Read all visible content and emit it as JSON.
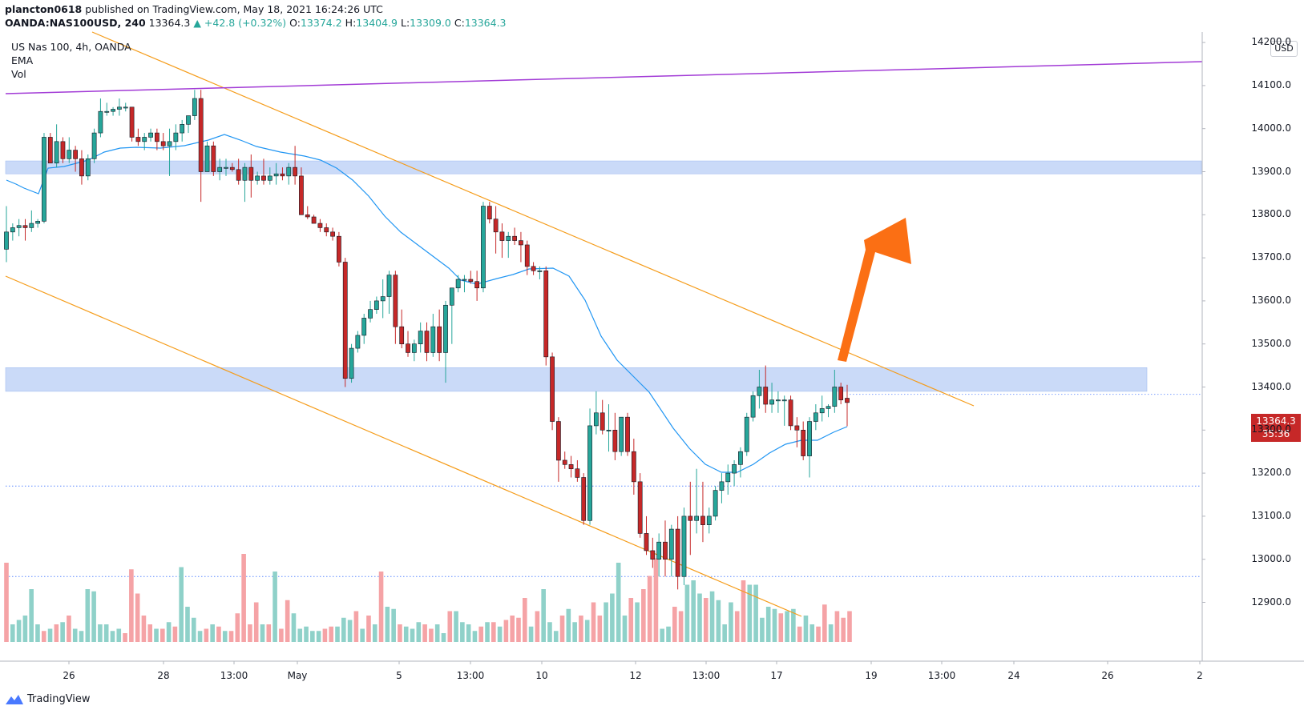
{
  "header": {
    "publisher": "plancton0618",
    "published_text": "published on TradingView.com, May 18, 2021 16:24:26 UTC",
    "symbol": "OANDA:NAS100USD, 240",
    "last": "13364.3",
    "change": "▲ +42.8 (+0.32%)",
    "o_label": "O:",
    "o": "13374.2",
    "h_label": "H:",
    "h": "13404.9",
    "l_label": "L:",
    "l": "13309.0",
    "c_label": "C:",
    "c": "13364.3"
  },
  "legend": {
    "title": "US Nas 100, 4h, OANDA",
    "ema": "EMA",
    "vol": "Vol"
  },
  "currency": "USD",
  "price_label": {
    "price": "13364.3",
    "countdown": "35:36"
  },
  "footer": {
    "brand": "TradingView"
  },
  "colors": {
    "up": "#26a69a",
    "down": "#c62828",
    "vol_up": "#8fd1c9",
    "vol_down": "#f5a3a6",
    "ema": "#2196f3",
    "channel": "#f59c1a",
    "resistance": "#a23bd6",
    "zone": "#c5d7f8",
    "arrow": "#fb6f14"
  },
  "chart_data": {
    "type": "candlestick",
    "timeframe": "4h",
    "y_axis": {
      "ticks": [
        12900,
        13000,
        13100,
        13200,
        13300,
        13400,
        13500,
        13600,
        13700,
        13800,
        13900,
        14000,
        14100,
        14200
      ]
    },
    "x_axis": {
      "ticks": [
        "26",
        "28",
        "13:00",
        "May",
        "5",
        "13:00",
        "10",
        "12",
        "13:00",
        "17",
        "19",
        "13:00",
        "24",
        "26",
        "2"
      ]
    },
    "candles": [
      [
        13720,
        13820,
        13690,
        13760
      ],
      [
        13760,
        13780,
        13740,
        13770
      ],
      [
        13770,
        13790,
        13750,
        13775
      ],
      [
        13775,
        13790,
        13740,
        13770
      ],
      [
        13770,
        13810,
        13760,
        13780
      ],
      [
        13780,
        13790,
        13770,
        13785
      ],
      [
        13785,
        13990,
        13780,
        13980
      ],
      [
        13980,
        13990,
        13920,
        13920
      ],
      [
        13920,
        14010,
        13910,
        13970
      ],
      [
        13970,
        13980,
        13920,
        13930
      ],
      [
        13930,
        13980,
        13920,
        13950
      ],
      [
        13950,
        13960,
        13900,
        13930
      ],
      [
        13930,
        13950,
        13870,
        13890
      ],
      [
        13890,
        13940,
        13880,
        13930
      ],
      [
        13930,
        14000,
        13920,
        13990
      ],
      [
        13990,
        14070,
        13980,
        14040
      ],
      [
        14040,
        14060,
        14030,
        14040
      ],
      [
        14040,
        14050,
        14030,
        14045
      ],
      [
        14045,
        14070,
        14030,
        14050
      ],
      [
        14050,
        14060,
        14040,
        14050
      ],
      [
        14050,
        14050,
        13970,
        13980
      ],
      [
        13980,
        14000,
        13960,
        13970
      ],
      [
        13970,
        13990,
        13950,
        13980
      ],
      [
        13980,
        14000,
        13970,
        13990
      ],
      [
        13990,
        14000,
        13950,
        13970
      ],
      [
        13970,
        13990,
        13950,
        13960
      ],
      [
        13960,
        14000,
        13890,
        13970
      ],
      [
        13970,
        14010,
        13950,
        13990
      ],
      [
        13990,
        14020,
        13970,
        14010
      ],
      [
        14010,
        14030,
        13990,
        14030
      ],
      [
        14030,
        14090,
        14020,
        14070
      ],
      [
        14070,
        14090,
        13830,
        13900
      ],
      [
        13900,
        13970,
        13900,
        13960
      ],
      [
        13960,
        13970,
        13890,
        13900
      ],
      [
        13900,
        13930,
        13880,
        13910
      ],
      [
        13910,
        13930,
        13890,
        13910
      ],
      [
        13910,
        13920,
        13900,
        13905
      ],
      [
        13905,
        13930,
        13870,
        13880
      ],
      [
        13880,
        13920,
        13830,
        13910
      ],
      [
        13910,
        13940,
        13840,
        13880
      ],
      [
        13880,
        13900,
        13870,
        13890
      ],
      [
        13890,
        13930,
        13870,
        13880
      ],
      [
        13880,
        13910,
        13870,
        13890
      ],
      [
        13890,
        13920,
        13870,
        13895
      ],
      [
        13895,
        13910,
        13880,
        13890
      ],
      [
        13890,
        13920,
        13870,
        13910
      ],
      [
        13910,
        13960,
        13870,
        13890
      ],
      [
        13890,
        13910,
        13800,
        13800
      ],
      [
        13800,
        13820,
        13790,
        13795
      ],
      [
        13795,
        13800,
        13780,
        13780
      ],
      [
        13780,
        13790,
        13760,
        13770
      ],
      [
        13770,
        13780,
        13750,
        13760
      ],
      [
        13760,
        13770,
        13740,
        13750
      ],
      [
        13750,
        13760,
        13680,
        13690
      ],
      [
        13690,
        13700,
        13400,
        13420
      ],
      [
        13420,
        13500,
        13410,
        13490
      ],
      [
        13490,
        13530,
        13480,
        13520
      ],
      [
        13520,
        13570,
        13500,
        13560
      ],
      [
        13560,
        13600,
        13550,
        13580
      ],
      [
        13580,
        13610,
        13570,
        13600
      ],
      [
        13600,
        13650,
        13560,
        13610
      ],
      [
        13610,
        13670,
        13570,
        13660
      ],
      [
        13660,
        13670,
        13500,
        13540
      ],
      [
        13540,
        13580,
        13490,
        13500
      ],
      [
        13500,
        13530,
        13470,
        13480
      ],
      [
        13480,
        13510,
        13460,
        13500
      ],
      [
        13500,
        13550,
        13480,
        13530
      ],
      [
        13530,
        13550,
        13460,
        13480
      ],
      [
        13480,
        13570,
        13470,
        13540
      ],
      [
        13540,
        13580,
        13460,
        13480
      ],
      [
        13480,
        13600,
        13410,
        13590
      ],
      [
        13590,
        13630,
        13500,
        13630
      ],
      [
        13630,
        13660,
        13620,
        13650
      ],
      [
        13650,
        13660,
        13620,
        13650
      ],
      [
        13650,
        13670,
        13640,
        13645
      ],
      [
        13645,
        13670,
        13600,
        13630
      ],
      [
        13630,
        13830,
        13620,
        13820
      ],
      [
        13820,
        13830,
        13780,
        13790
      ],
      [
        13790,
        13820,
        13710,
        13760
      ],
      [
        13760,
        13780,
        13700,
        13740
      ],
      [
        13740,
        13760,
        13700,
        13750
      ],
      [
        13750,
        13770,
        13730,
        13740
      ],
      [
        13740,
        13760,
        13690,
        13730
      ],
      [
        13730,
        13740,
        13660,
        13680
      ],
      [
        13680,
        13690,
        13660,
        13670
      ],
      [
        13670,
        13680,
        13650,
        13670
      ],
      [
        13670,
        13680,
        13450,
        13470
      ],
      [
        13470,
        13480,
        13300,
        13320
      ],
      [
        13320,
        13330,
        13180,
        13230
      ],
      [
        13230,
        13250,
        13210,
        13220
      ],
      [
        13220,
        13240,
        13190,
        13210
      ],
      [
        13210,
        13230,
        13180,
        13190
      ],
      [
        13190,
        13200,
        13080,
        13090
      ],
      [
        13090,
        13350,
        13080,
        13310
      ],
      [
        13310,
        13390,
        13290,
        13340
      ],
      [
        13340,
        13370,
        13290,
        13300
      ],
      [
        13300,
        13360,
        13250,
        13300
      ],
      [
        13300,
        13340,
        13230,
        13250
      ],
      [
        13250,
        13330,
        13240,
        13330
      ],
      [
        13330,
        13340,
        13240,
        13250
      ],
      [
        13250,
        13280,
        13150,
        13180
      ],
      [
        13180,
        13200,
        13050,
        13060
      ],
      [
        13060,
        13100,
        13010,
        13020
      ],
      [
        13020,
        13050,
        12980,
        13000
      ],
      [
        13000,
        13060,
        12960,
        13040
      ],
      [
        13040,
        13090,
        12960,
        13000
      ],
      [
        13000,
        13080,
        12960,
        13070
      ],
      [
        13070,
        13100,
        12930,
        12960
      ],
      [
        12960,
        13120,
        12940,
        13100
      ],
      [
        13100,
        13180,
        13010,
        13090
      ],
      [
        13090,
        13210,
        13060,
        13100
      ],
      [
        13100,
        13180,
        13040,
        13080
      ],
      [
        13080,
        13120,
        13060,
        13100
      ],
      [
        13100,
        13170,
        13090,
        13160
      ],
      [
        13160,
        13200,
        13130,
        13180
      ],
      [
        13180,
        13220,
        13150,
        13200
      ],
      [
        13200,
        13230,
        13170,
        13220
      ],
      [
        13220,
        13260,
        13190,
        13250
      ],
      [
        13250,
        13340,
        13240,
        13330
      ],
      [
        13330,
        13390,
        13320,
        13380
      ],
      [
        13380,
        13440,
        13350,
        13400
      ],
      [
        13400,
        13450,
        13340,
        13360
      ],
      [
        13360,
        13410,
        13340,
        13370
      ],
      [
        13370,
        13390,
        13340,
        13370
      ],
      [
        13370,
        13380,
        13310,
        13370
      ],
      [
        13370,
        13380,
        13300,
        13310
      ],
      [
        13310,
        13330,
        13260,
        13300
      ],
      [
        13300,
        13320,
        13230,
        13240
      ],
      [
        13240,
        13330,
        13190,
        13320
      ],
      [
        13320,
        13360,
        13300,
        13340
      ],
      [
        13340,
        13380,
        13320,
        13350
      ],
      [
        13350,
        13360,
        13330,
        13355
      ],
      [
        13355,
        13440,
        13340,
        13400
      ],
      [
        13400,
        13410,
        13360,
        13370
      ],
      [
        13374,
        13405,
        13309,
        13364
      ]
    ],
    "volume": [
      [
        180,
        0
      ],
      [
        40,
        1
      ],
      [
        50,
        1
      ],
      [
        60,
        1
      ],
      [
        120,
        1
      ],
      [
        40,
        1
      ],
      [
        25,
        0
      ],
      [
        30,
        1
      ],
      [
        40,
        0
      ],
      [
        45,
        1
      ],
      [
        60,
        0
      ],
      [
        30,
        1
      ],
      [
        25,
        1
      ],
      [
        120,
        1
      ],
      [
        115,
        1
      ],
      [
        40,
        1
      ],
      [
        40,
        1
      ],
      [
        25,
        1
      ],
      [
        30,
        1
      ],
      [
        20,
        0
      ],
      [
        165,
        0
      ],
      [
        110,
        0
      ],
      [
        60,
        0
      ],
      [
        40,
        0
      ],
      [
        30,
        1
      ],
      [
        30,
        0
      ],
      [
        45,
        1
      ],
      [
        35,
        0
      ],
      [
        170,
        1
      ],
      [
        80,
        1
      ],
      [
        55,
        1
      ],
      [
        25,
        1
      ],
      [
        30,
        0
      ],
      [
        40,
        1
      ],
      [
        35,
        0
      ],
      [
        25,
        1
      ],
      [
        25,
        0
      ],
      [
        65,
        0
      ],
      [
        200,
        0
      ],
      [
        40,
        0
      ],
      [
        90,
        0
      ],
      [
        40,
        1
      ],
      [
        40,
        0
      ],
      [
        160,
        1
      ],
      [
        30,
        0
      ],
      [
        95,
        0
      ],
      [
        65,
        1
      ],
      [
        30,
        1
      ],
      [
        35,
        1
      ],
      [
        25,
        1
      ],
      [
        25,
        1
      ],
      [
        30,
        0
      ],
      [
        35,
        0
      ],
      [
        35,
        1
      ],
      [
        55,
        1
      ],
      [
        50,
        1
      ],
      [
        70,
        0
      ],
      [
        30,
        1
      ],
      [
        60,
        0
      ],
      [
        40,
        1
      ],
      [
        160,
        0
      ],
      [
        80,
        1
      ],
      [
        75,
        1
      ],
      [
        40,
        0
      ],
      [
        35,
        1
      ],
      [
        30,
        1
      ],
      [
        45,
        1
      ],
      [
        40,
        0
      ],
      [
        30,
        0
      ],
      [
        40,
        1
      ],
      [
        20,
        1
      ],
      [
        70,
        0
      ],
      [
        70,
        1
      ],
      [
        45,
        1
      ],
      [
        40,
        1
      ],
      [
        25,
        1
      ],
      [
        35,
        0
      ],
      [
        45,
        1
      ],
      [
        45,
        0
      ],
      [
        35,
        1
      ],
      [
        50,
        0
      ],
      [
        60,
        0
      ],
      [
        55,
        0
      ],
      [
        100,
        0
      ],
      [
        35,
        1
      ],
      [
        70,
        0
      ],
      [
        120,
        1
      ],
      [
        45,
        1
      ],
      [
        25,
        1
      ],
      [
        60,
        0
      ],
      [
        75,
        1
      ],
      [
        45,
        1
      ],
      [
        60,
        0
      ],
      [
        50,
        1
      ],
      [
        90,
        0
      ],
      [
        60,
        0
      ],
      [
        90,
        1
      ],
      [
        110,
        1
      ],
      [
        180,
        1
      ],
      [
        60,
        1
      ],
      [
        100,
        0
      ],
      [
        90,
        1
      ],
      [
        120,
        0
      ],
      [
        150,
        0
      ],
      [
        190,
        0
      ],
      [
        30,
        1
      ],
      [
        35,
        1
      ],
      [
        80,
        0
      ],
      [
        70,
        0
      ],
      [
        130,
        1
      ],
      [
        140,
        1
      ],
      [
        110,
        1
      ],
      [
        100,
        0
      ],
      [
        115,
        1
      ],
      [
        95,
        1
      ],
      [
        40,
        1
      ],
      [
        90,
        1
      ],
      [
        70,
        0
      ],
      [
        140,
        0
      ],
      [
        130,
        1
      ],
      [
        130,
        1
      ],
      [
        55,
        1
      ],
      [
        80,
        1
      ],
      [
        75,
        1
      ],
      [
        65,
        0
      ],
      [
        70,
        1
      ],
      [
        75,
        1
      ],
      [
        35,
        0
      ],
      [
        60,
        1
      ],
      [
        40,
        1
      ],
      [
        35,
        0
      ],
      [
        85,
        0
      ],
      [
        40,
        1
      ],
      [
        70,
        0
      ],
      [
        55,
        0
      ],
      [
        70,
        0
      ]
    ],
    "ema": [
      [
        8,
        225
      ],
      [
        20,
        230
      ],
      [
        30,
        235
      ],
      [
        48,
        242
      ],
      [
        60,
        210
      ],
      [
        80,
        208
      ],
      [
        110,
        200
      ],
      [
        130,
        190
      ],
      [
        150,
        185
      ],
      [
        170,
        184
      ],
      [
        200,
        185
      ],
      [
        230,
        182
      ],
      [
        260,
        175
      ],
      [
        280,
        168
      ],
      [
        300,
        175
      ],
      [
        320,
        183
      ],
      [
        350,
        190
      ],
      [
        380,
        195
      ],
      [
        400,
        200
      ],
      [
        420,
        210
      ],
      [
        440,
        225
      ],
      [
        460,
        245
      ],
      [
        480,
        270
      ],
      [
        500,
        290
      ],
      [
        520,
        305
      ],
      [
        540,
        320
      ],
      [
        560,
        335
      ],
      [
        575,
        350
      ],
      [
        595,
        355
      ],
      [
        620,
        348
      ],
      [
        640,
        343
      ],
      [
        660,
        336
      ],
      [
        690,
        335
      ],
      [
        710,
        345
      ],
      [
        730,
        375
      ],
      [
        750,
        420
      ],
      [
        770,
        450
      ],
      [
        790,
        470
      ],
      [
        810,
        490
      ],
      [
        840,
        535
      ],
      [
        860,
        560
      ],
      [
        880,
        580
      ],
      [
        900,
        590
      ],
      [
        920,
        590
      ],
      [
        940,
        580
      ],
      [
        960,
        566
      ],
      [
        980,
        555
      ],
      [
        1000,
        550
      ],
      [
        1020,
        550
      ],
      [
        1040,
        540
      ],
      [
        1057,
        533
      ]
    ]
  },
  "overlays": {
    "upper_channel_line": [
      [
        115,
        40
      ],
      [
        1215,
        507
      ]
    ],
    "lower_channel_line": [
      [
        7,
        345
      ],
      [
        1000,
        770
      ]
    ],
    "resistance_line": [
      [
        7,
        117
      ],
      [
        1500,
        77
      ]
    ],
    "zone_upper": [
      13895,
      13925
    ],
    "zone_lower": [
      13390,
      13445
    ],
    "dotted_levels": [
      13170,
      12960
    ],
    "arrow": [
      [
        1045,
        450
      ],
      [
        1130,
        270
      ]
    ]
  }
}
